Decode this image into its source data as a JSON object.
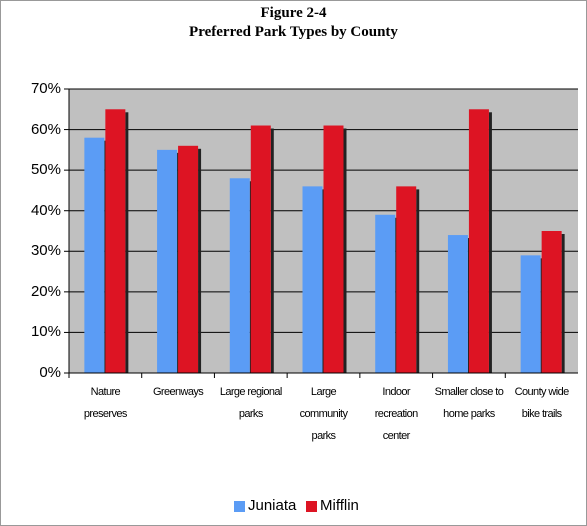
{
  "chart_data": {
    "type": "bar",
    "title": "Figure 2-4",
    "subtitle": "Preferred Park Types by County",
    "categories": [
      "Nature preserves",
      "Greenways",
      "Large regional parks",
      "Large community parks",
      "Indoor recreation center",
      "Smaller close to home parks",
      "County wide bike trails"
    ],
    "series": [
      {
        "name": "Juniata",
        "color": "#5b9cf5",
        "values": [
          58,
          55,
          48,
          46,
          39,
          34,
          29
        ]
      },
      {
        "name": "Mifflin",
        "color": "#dd1423",
        "values": [
          65,
          56,
          61,
          61,
          46,
          65,
          35
        ]
      }
    ],
    "ylim": [
      0,
      70
    ],
    "yticks": [
      {
        "value": 0,
        "label": "0%"
      },
      {
        "value": 10,
        "label": "10%"
      },
      {
        "value": 20,
        "label": "20%"
      },
      {
        "value": 30,
        "label": "30%"
      },
      {
        "value": 40,
        "label": "40%"
      },
      {
        "value": 50,
        "label": "50%"
      },
      {
        "value": 60,
        "label": "60%"
      },
      {
        "value": 70,
        "label": "70%"
      }
    ],
    "grid": true,
    "legend": "bottom"
  }
}
